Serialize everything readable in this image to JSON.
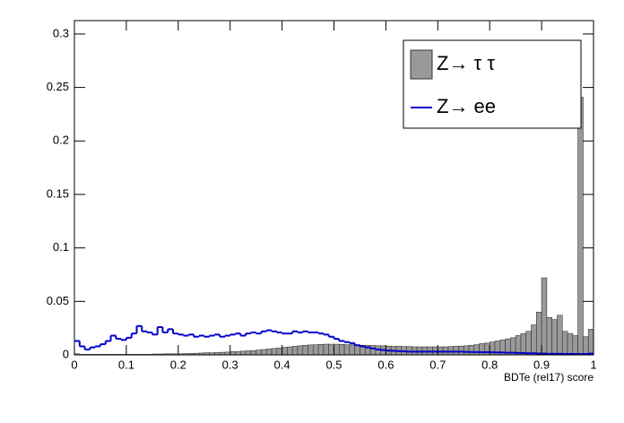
{
  "chart_data": {
    "type": "histogram",
    "x_label": "BDTe (rel17) score",
    "bins": [
      0,
      0.01,
      0.02,
      0.03,
      0.04,
      0.05,
      0.06,
      0.07,
      0.08,
      0.09,
      0.1,
      0.11,
      0.12,
      0.13,
      0.14,
      0.15,
      0.16,
      0.17,
      0.18,
      0.19,
      0.2,
      0.21,
      0.22,
      0.23,
      0.24,
      0.25,
      0.26,
      0.27,
      0.28,
      0.29,
      0.3,
      0.31,
      0.32,
      0.33,
      0.34,
      0.35,
      0.36,
      0.37,
      0.38,
      0.39,
      0.4,
      0.41,
      0.42,
      0.43,
      0.44,
      0.45,
      0.46,
      0.47,
      0.48,
      0.49,
      0.5,
      0.51,
      0.52,
      0.53,
      0.54,
      0.55,
      0.56,
      0.57,
      0.58,
      0.59,
      0.6,
      0.61,
      0.62,
      0.63,
      0.64,
      0.65,
      0.66,
      0.67,
      0.68,
      0.69,
      0.7,
      0.71,
      0.72,
      0.73,
      0.74,
      0.75,
      0.76,
      0.77,
      0.78,
      0.79,
      0.8,
      0.81,
      0.82,
      0.83,
      0.84,
      0.85,
      0.86,
      0.87,
      0.88,
      0.89,
      0.9,
      0.91,
      0.92,
      0.93,
      0.94,
      0.95,
      0.96,
      0.97,
      0.98,
      0.99,
      1
    ],
    "series": [
      {
        "name": "Z→ τ τ",
        "color": "#999999",
        "style": "filled",
        "values": [
          0.001,
          0.0005,
          0.0005,
          0.0005,
          0.0005,
          0.0005,
          0.0005,
          0.0005,
          0.0005,
          0.0005,
          0.0005,
          0.0005,
          0.0005,
          0.0005,
          0.0005,
          0.0008,
          0.0008,
          0.001,
          0.001,
          0.001,
          0.001,
          0.0012,
          0.0014,
          0.0015,
          0.0017,
          0.002,
          0.002,
          0.0022,
          0.0024,
          0.0026,
          0.003,
          0.0032,
          0.0035,
          0.0038,
          0.004,
          0.0045,
          0.005,
          0.0055,
          0.006,
          0.0065,
          0.007,
          0.0075,
          0.008,
          0.0085,
          0.009,
          0.0093,
          0.0095,
          0.0098,
          0.01,
          0.01,
          0.01,
          0.0098,
          0.0095,
          0.0095,
          0.0095,
          0.009,
          0.009,
          0.0088,
          0.0085,
          0.0085,
          0.0082,
          0.008,
          0.008,
          0.0078,
          0.0078,
          0.0075,
          0.0075,
          0.0075,
          0.0075,
          0.0075,
          0.0075,
          0.0075,
          0.0078,
          0.008,
          0.0082,
          0.0085,
          0.009,
          0.0095,
          0.0105,
          0.011,
          0.012,
          0.013,
          0.014,
          0.015,
          0.016,
          0.018,
          0.02,
          0.022,
          0.028,
          0.04,
          0.072,
          0.035,
          0.033,
          0.037,
          0.022,
          0.02,
          0.018,
          0.241,
          0.017,
          0.024
        ]
      },
      {
        "name": "Z→ ee",
        "color": "#0000cc",
        "style": "line",
        "values": [
          0.013,
          0.008,
          0.005,
          0.007,
          0.008,
          0.01,
          0.013,
          0.018,
          0.015,
          0.014,
          0.016,
          0.02,
          0.027,
          0.022,
          0.021,
          0.019,
          0.026,
          0.021,
          0.024,
          0.02,
          0.019,
          0.018,
          0.019,
          0.017,
          0.018,
          0.017,
          0.018,
          0.019,
          0.017,
          0.018,
          0.019,
          0.02,
          0.018,
          0.02,
          0.021,
          0.02,
          0.022,
          0.023,
          0.022,
          0.021,
          0.02,
          0.02,
          0.022,
          0.021,
          0.022,
          0.021,
          0.021,
          0.02,
          0.019,
          0.017,
          0.015,
          0.013,
          0.012,
          0.011,
          0.009,
          0.008,
          0.007,
          0.006,
          0.005,
          0.0045,
          0.004,
          0.0038,
          0.0035,
          0.0033,
          0.003,
          0.003,
          0.003,
          0.003,
          0.003,
          0.003,
          0.003,
          0.003,
          0.003,
          0.003,
          0.003,
          0.0028,
          0.0027,
          0.0026,
          0.0025,
          0.0025,
          0.0024,
          0.0023,
          0.0022,
          0.002,
          0.002,
          0.0018,
          0.0017,
          0.0015,
          0.0015,
          0.0013,
          0.0012,
          0.001,
          0.001,
          0.001,
          0.0009,
          0.0009,
          0.0008,
          0.0008,
          0.0008,
          0.0012
        ]
      }
    ],
    "xlim": [
      0,
      1
    ],
    "xticks": [
      0,
      0.1,
      0.2,
      0.3,
      0.4,
      0.5,
      0.6,
      0.7,
      0.8,
      0.9,
      1
    ],
    "ylim": [
      0,
      0.3125
    ],
    "yticks": [
      0,
      0.05,
      0.1,
      0.15,
      0.2,
      0.25,
      0.3
    ],
    "legend": "top-right"
  }
}
